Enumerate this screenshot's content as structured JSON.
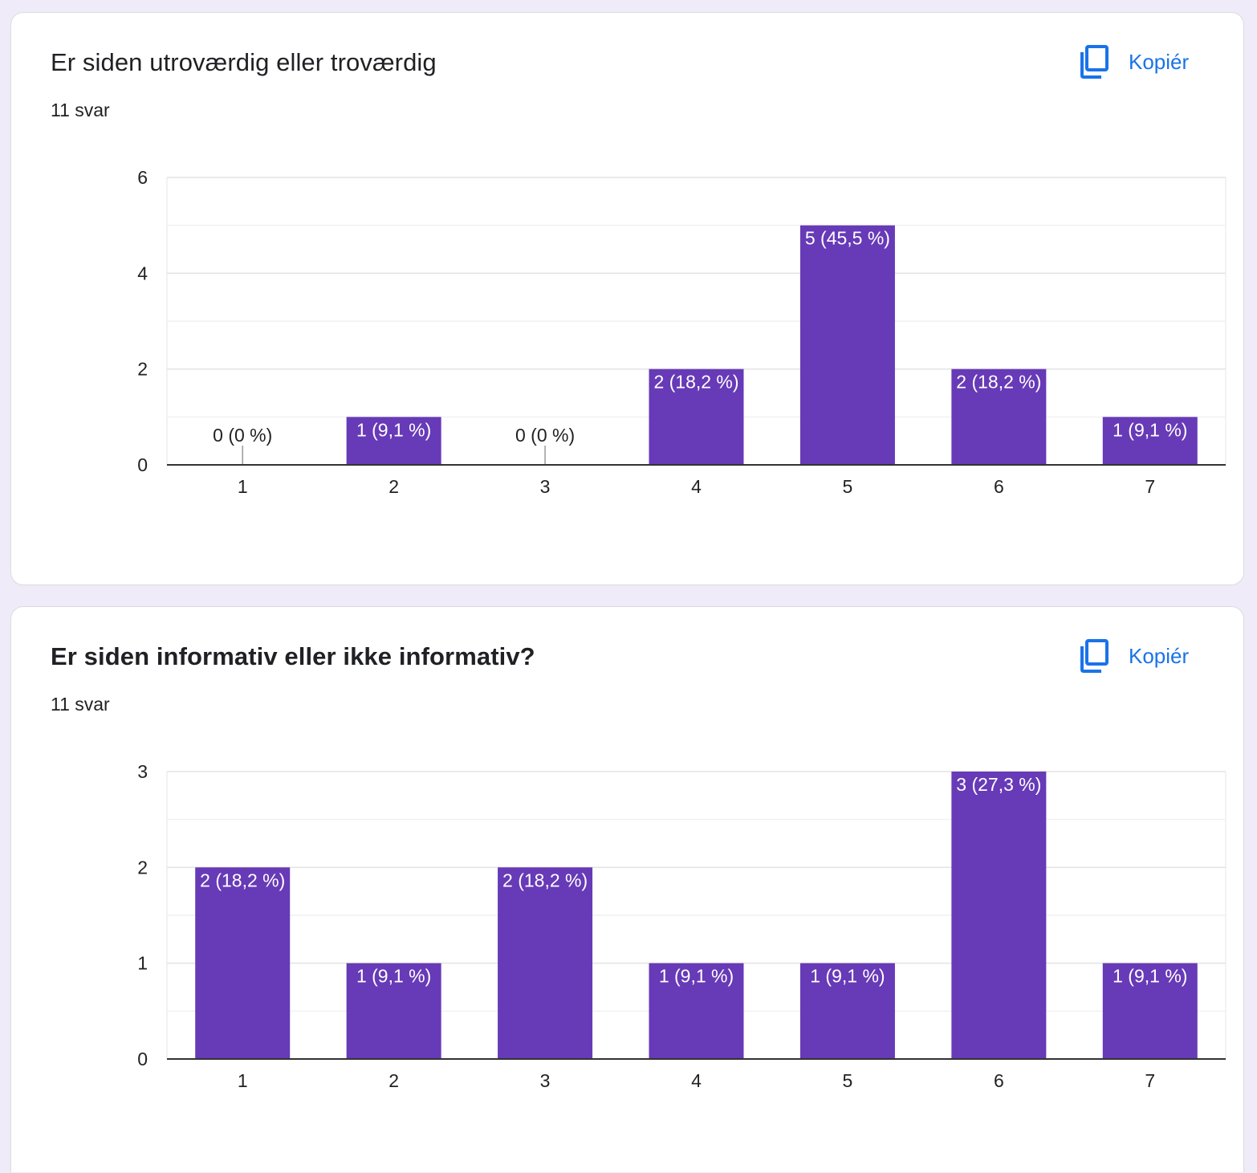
{
  "colors": {
    "bar": "#673ab7",
    "accent": "#1a73e8",
    "background": "#efebf8"
  },
  "cards": [
    {
      "title": "Er siden utroværdig eller troværdig",
      "count_label": "11 svar",
      "copy_label": "Kopiér",
      "copy_icon": "copy-icon"
    },
    {
      "title": "Er siden informativ eller ikke informativ?",
      "count_label": "11 svar",
      "copy_label": "Kopiér",
      "copy_icon": "copy-icon"
    }
  ],
  "chart_data": [
    {
      "type": "bar",
      "title": "Er siden utroværdig eller troværdig",
      "categories": [
        "1",
        "2",
        "3",
        "4",
        "5",
        "6",
        "7"
      ],
      "values": [
        0,
        1,
        0,
        2,
        5,
        2,
        1
      ],
      "labels": [
        "0 (0 %)",
        "1 (9,1 %)",
        "0 (0 %)",
        "2 (18,2 %)",
        "5 (45,5 %)",
        "2 (18,2 %)",
        "1 (9,1 %)"
      ],
      "yticks": [
        0,
        2,
        4,
        6
      ],
      "ylim": [
        0,
        6
      ],
      "grid": true,
      "color": "#673ab7"
    },
    {
      "type": "bar",
      "title": "Er siden informativ eller ikke informativ?",
      "categories": [
        "1",
        "2",
        "3",
        "4",
        "5",
        "6",
        "7"
      ],
      "values": [
        2,
        1,
        2,
        1,
        1,
        3,
        1
      ],
      "labels": [
        "2 (18,2 %)",
        "1 (9,1 %)",
        "2 (18,2 %)",
        "1 (9,1 %)",
        "1 (9,1 %)",
        "3 (27,3 %)",
        "1 (9,1 %)"
      ],
      "yticks": [
        0,
        1,
        2,
        3
      ],
      "ylim": [
        0,
        3
      ],
      "grid": true,
      "color": "#673ab7"
    }
  ]
}
